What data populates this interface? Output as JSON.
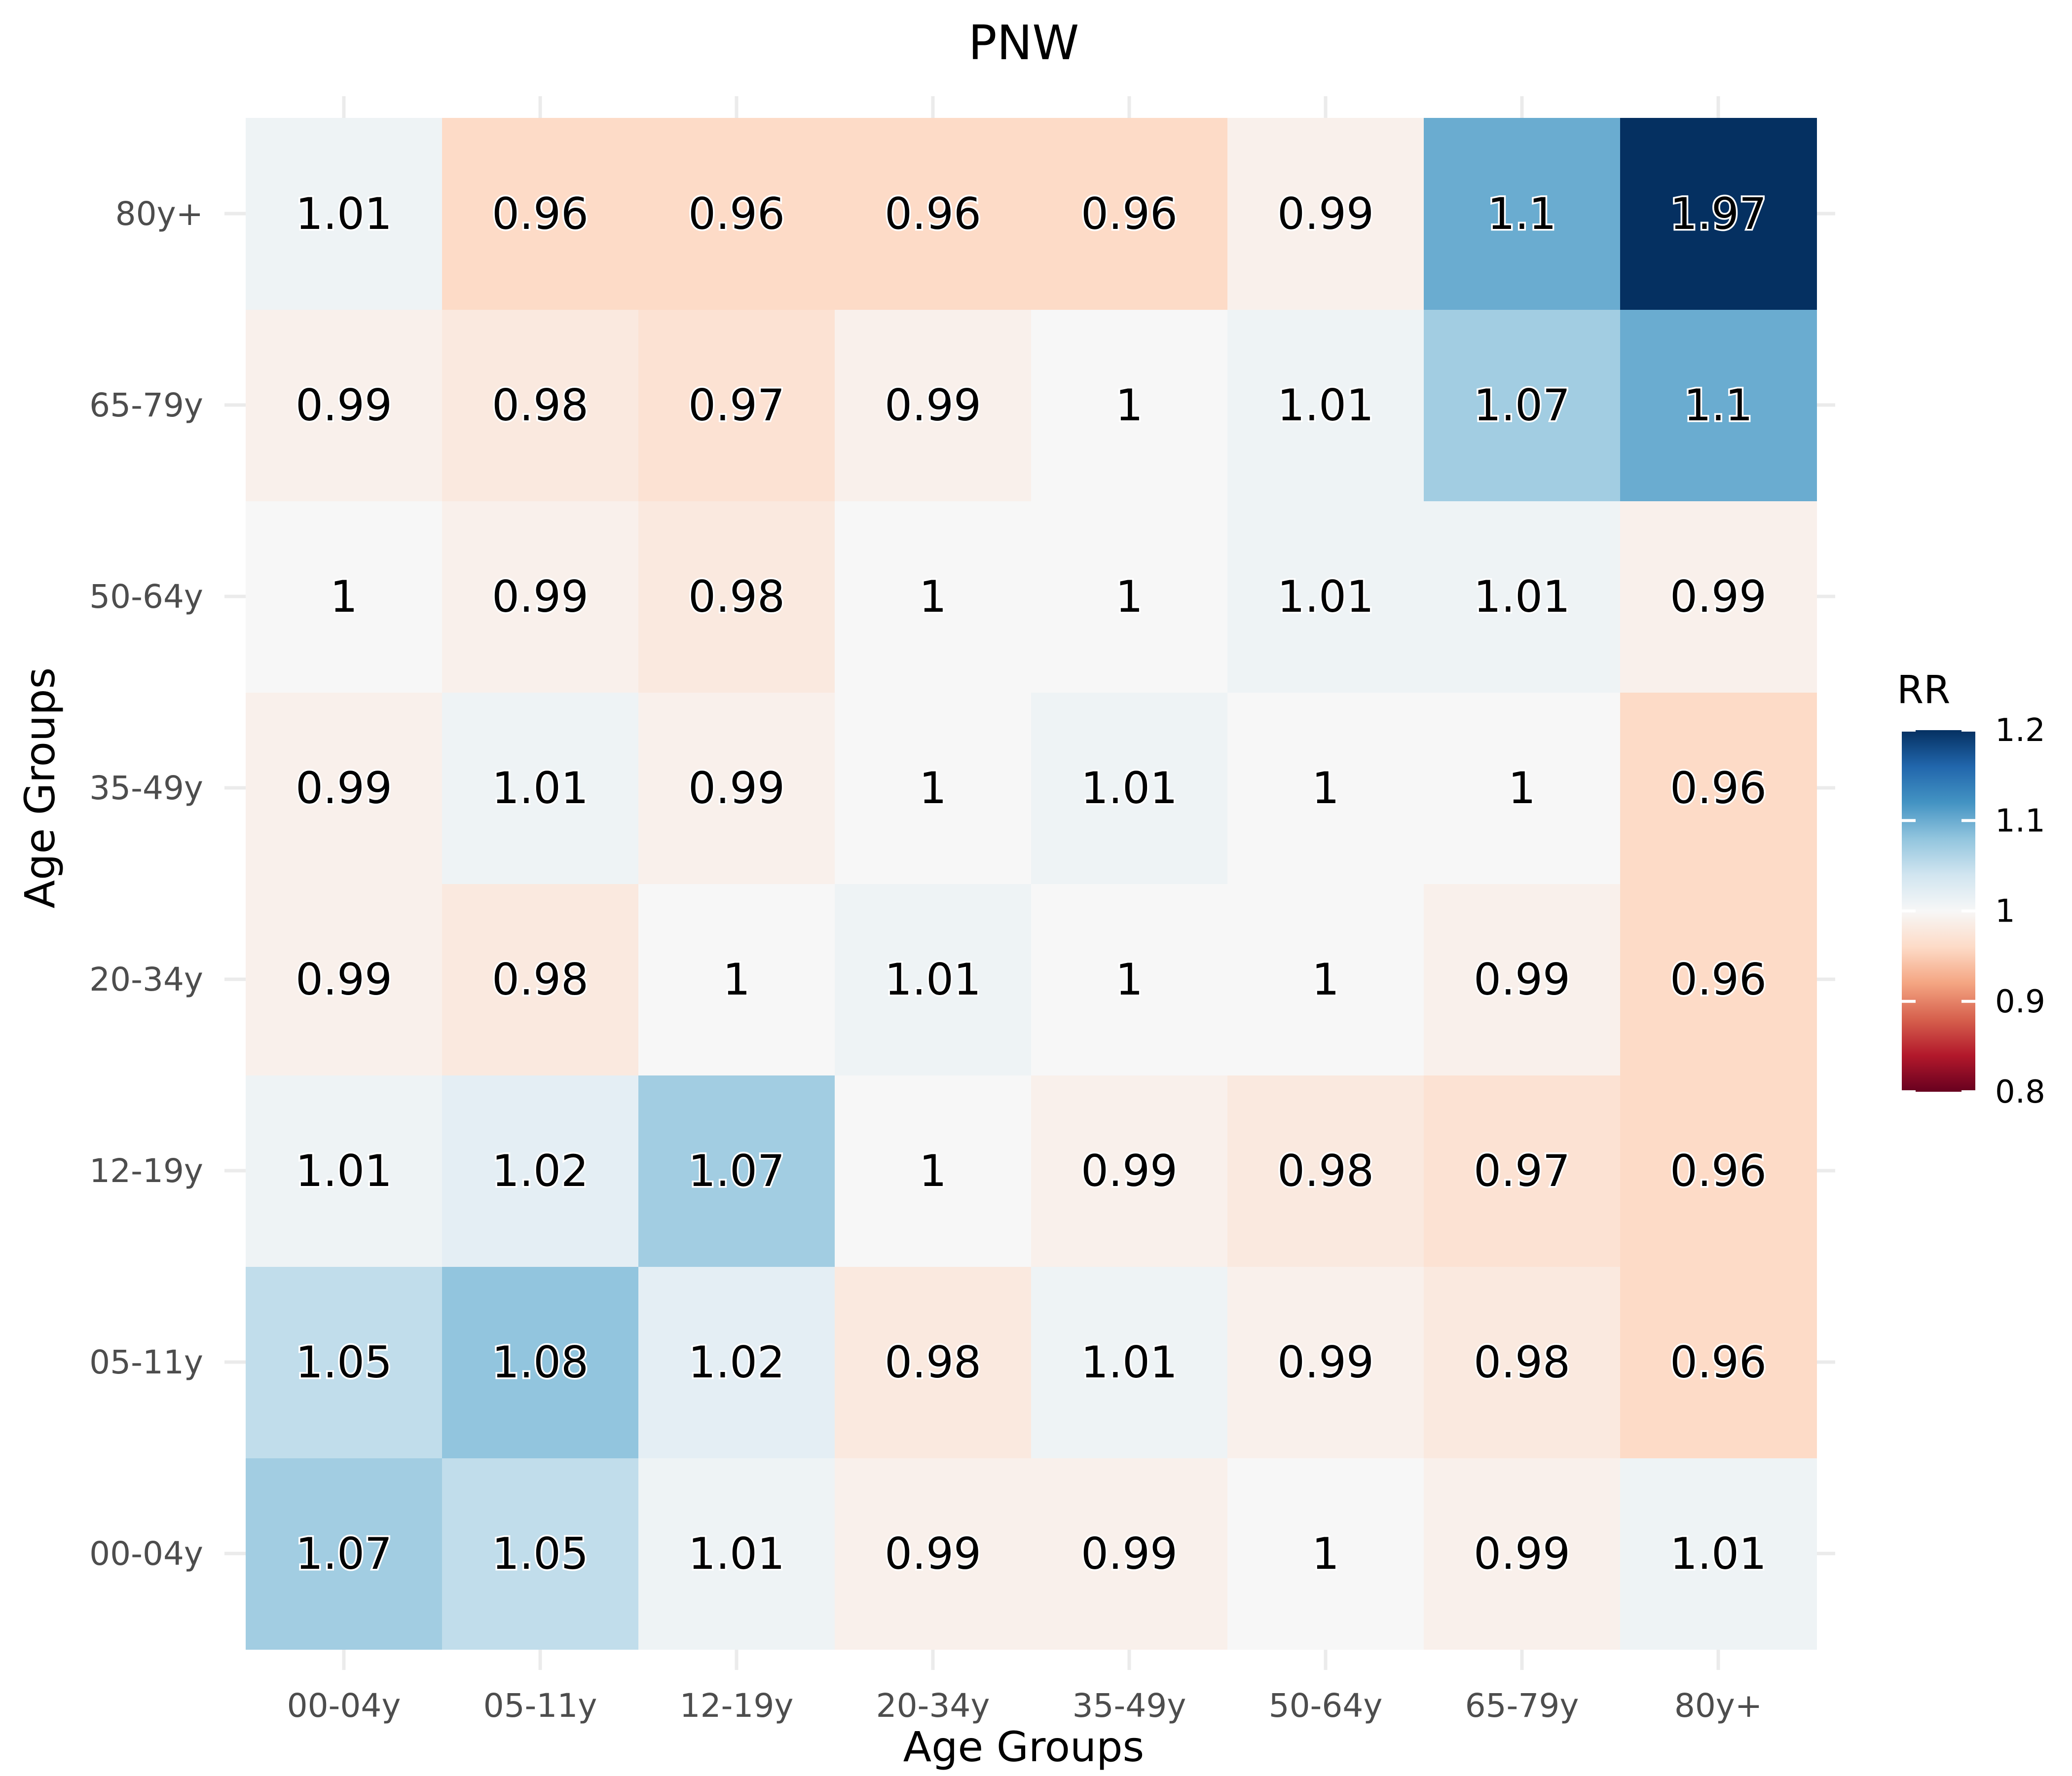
{
  "chart_data": {
    "type": "heatmap",
    "title": "PNW",
    "xlabel": "Age Groups",
    "ylabel": "Age Groups",
    "x_categories": [
      "00-04y",
      "05-11y",
      "12-19y",
      "20-34y",
      "35-49y",
      "50-64y",
      "65-79y",
      "80y+"
    ],
    "y_categories": [
      "00-04y",
      "05-11y",
      "12-19y",
      "20-34y",
      "35-49y",
      "50-64y",
      "65-79y",
      "80y+"
    ],
    "values": [
      [
        1.07,
        1.05,
        1.01,
        0.99,
        0.99,
        1,
        0.99,
        1.01
      ],
      [
        1.05,
        1.08,
        1.02,
        0.98,
        1.01,
        0.99,
        0.98,
        0.96
      ],
      [
        1.01,
        1.02,
        1.07,
        1,
        0.99,
        0.98,
        0.97,
        0.96
      ],
      [
        0.99,
        0.98,
        1,
        1.01,
        1,
        1,
        0.99,
        0.96
      ],
      [
        0.99,
        1.01,
        0.99,
        1,
        1.01,
        1,
        1,
        0.96
      ],
      [
        1,
        0.99,
        0.98,
        1,
        1,
        1.01,
        1.01,
        0.99
      ],
      [
        0.99,
        0.98,
        0.97,
        0.99,
        1,
        1.01,
        1.07,
        1.1
      ],
      [
        1.01,
        0.96,
        0.96,
        0.96,
        0.96,
        0.99,
        1.1,
        1.97
      ]
    ],
    "legend": {
      "title": "RR",
      "ticks": [
        0.8,
        0.9,
        1,
        1.1,
        1.2
      ],
      "tick_labels": [
        "0.8",
        "0.9",
        "1",
        "1.1",
        "1.2"
      ],
      "limits": [
        0.8,
        1.2
      ],
      "placement": "right",
      "colors": [
        "#67001f",
        "#b2182b",
        "#d6604d",
        "#f4a582",
        "#fddbc7",
        "#f7f7f7",
        "#d1e5f0",
        "#92c5de",
        "#4393c3",
        "#2166ac",
        "#053061"
      ]
    },
    "grid": true
  }
}
